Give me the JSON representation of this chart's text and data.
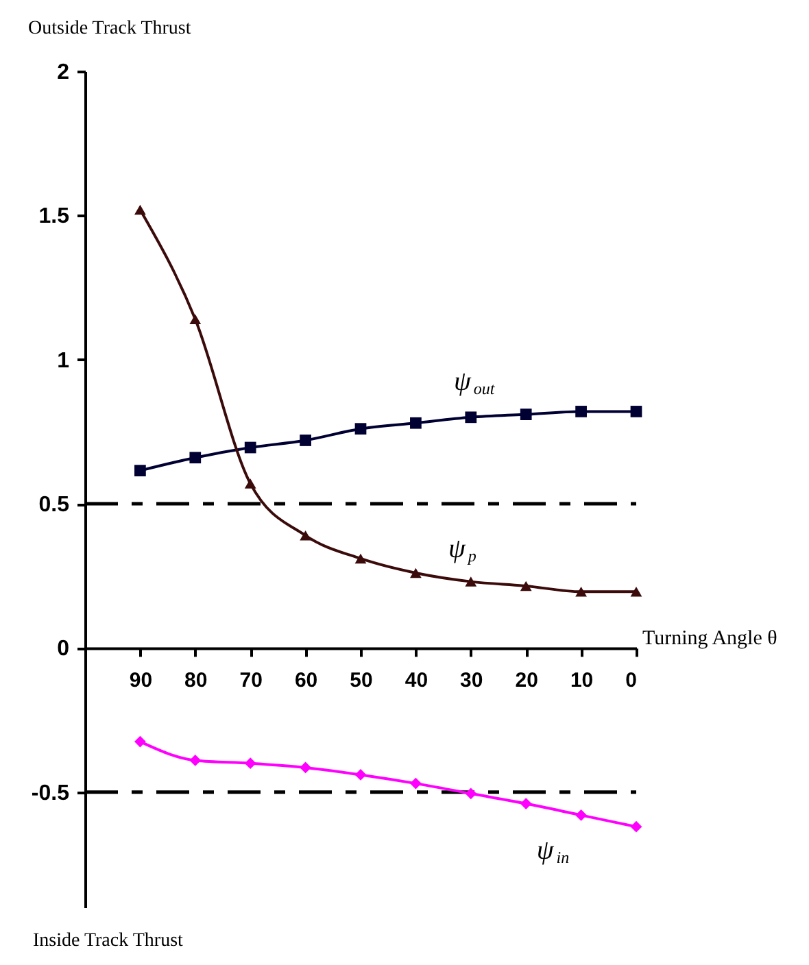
{
  "chart_data": {
    "type": "line",
    "ylabel": "Outside Track Thrust",
    "xlabel": "Turning Angle θ",
    "annotations": [
      "Inside Track Thrust"
    ],
    "x": [
      90,
      80,
      70,
      60,
      50,
      40,
      30,
      20,
      10,
      0
    ],
    "series": [
      {
        "name": "ψ$_{out}$",
        "color": "#000033",
        "marker": "square",
        "values": [
          0.615,
          0.66,
          0.695,
          0.72,
          0.76,
          0.78,
          0.8,
          0.81,
          0.82,
          0.82
        ]
      },
      {
        "name": "ψ$_{p}$",
        "color": "#3b0a0a",
        "marker": "triangle",
        "values": [
          1.52,
          1.14,
          0.57,
          0.39,
          0.31,
          0.26,
          0.23,
          0.215,
          0.195,
          0.195
        ]
      },
      {
        "name": "ψ$_{in}$",
        "color": "#ff00ff",
        "marker": "diamond",
        "values": [
          -0.325,
          -0.39,
          -0.4,
          -0.415,
          -0.44,
          -0.47,
          -0.505,
          -0.54,
          -0.58,
          -0.62
        ]
      }
    ],
    "xlim": [
      100,
      0
    ],
    "xticks": [
      90,
      80,
      70,
      60,
      50,
      40,
      30,
      20,
      10,
      0
    ],
    "ylim": [
      -0.9,
      2
    ],
    "yticks": [
      2,
      1.5,
      1,
      0.5,
      0,
      -0.5
    ],
    "ref_lines": [
      {
        "axis": "y",
        "value": 0.5,
        "line_style": "dashed",
        "color": "#000000"
      },
      {
        "axis": "y",
        "value": -0.5,
        "line_style": "dashed",
        "color": "#000000"
      }
    ],
    "grid": false,
    "line_style": "solid"
  }
}
